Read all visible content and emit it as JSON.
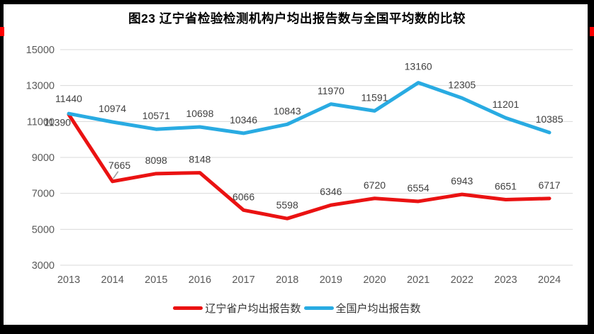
{
  "title": "图23 辽宁省检验检测机构户均出报告数与全国平均数的比较",
  "frame": {
    "border_color": "#000000",
    "edge_marker_color": "#fe0000"
  },
  "chart_data": {
    "type": "line",
    "x": [
      2013,
      2014,
      2015,
      2016,
      2017,
      2018,
      2019,
      2020,
      2021,
      2022,
      2023,
      2024
    ],
    "series": [
      {
        "name": "辽宁省户均出报告数",
        "color": "#ea1212",
        "values": [
          11390,
          7665,
          8098,
          8148,
          6066,
          5598,
          6346,
          6720,
          6554,
          6943,
          6651,
          6717
        ]
      },
      {
        "name": "全国户均出报告数",
        "color": "#29abe2",
        "values": [
          11440,
          10974,
          10571,
          10698,
          10346,
          10843,
          11970,
          11591,
          13160,
          12305,
          11201,
          10385
        ]
      }
    ],
    "ylim": [
      3000,
      15000
    ],
    "yticks": [
      3000,
      5000,
      7000,
      9000,
      11000,
      13000,
      15000
    ],
    "grid": true,
    "gridline_color": "#d9d9d9",
    "axis_label_color": "#595959",
    "data_label_color": "#404040",
    "leader_line_color": "#999999",
    "legend_position": "bottom",
    "label_offsets": {
      "0-0": [
        -16,
        16
      ],
      "0-1": [
        10,
        -18
      ],
      "1-0": [
        0,
        -16
      ],
      "1-8": [
        0,
        -18
      ]
    },
    "leader_point": [
      0,
      1
    ]
  }
}
